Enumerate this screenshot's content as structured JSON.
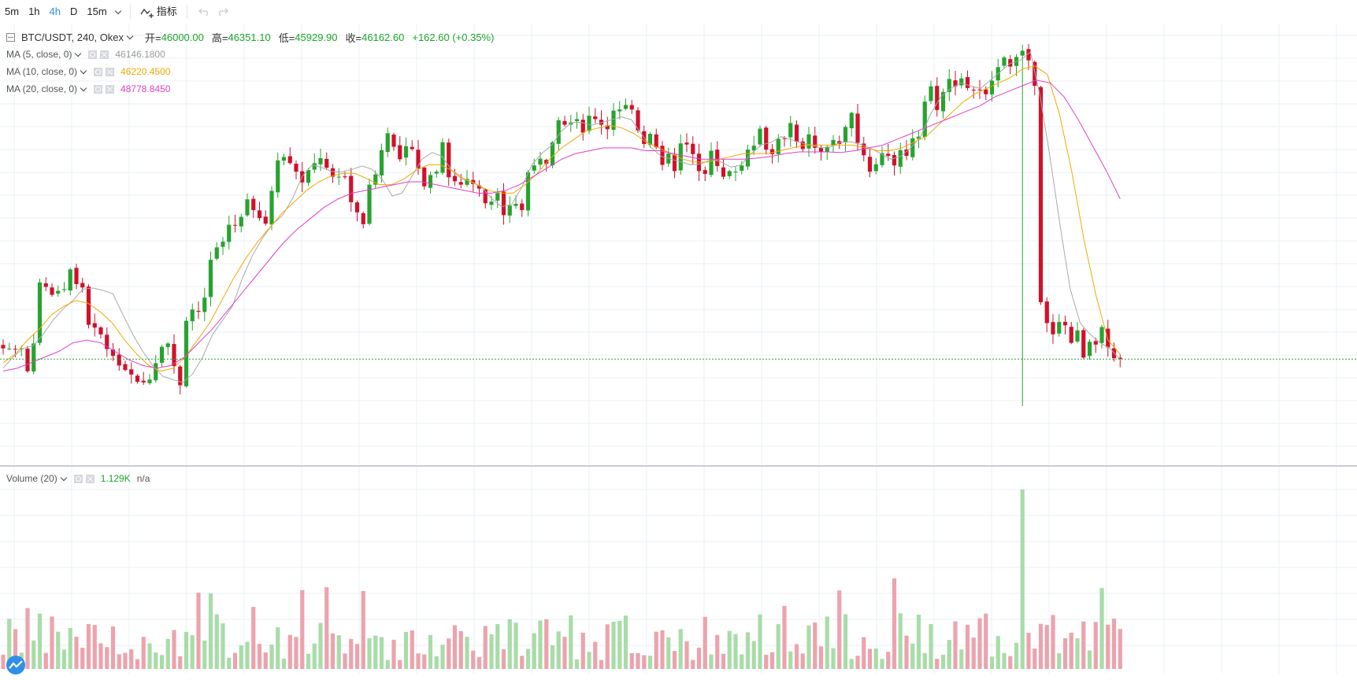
{
  "toolbar": {
    "intervals": [
      "5m",
      "1h",
      "4h",
      "D",
      "15m"
    ],
    "active_interval": "4h",
    "indicators_label": "指标"
  },
  "main_legend": {
    "symbol": "BTC/USDT, 240, Okex",
    "open_label": "开=",
    "open": "46000.00",
    "high_label": "高=",
    "high": "46351.10",
    "low_label": "低=",
    "low": "45929.90",
    "close_label": "收=",
    "close": "46162.60",
    "change": "+162.60 (+0.35%)"
  },
  "ma_legends": [
    {
      "label": "MA (5, close, 0)",
      "value": "46146.1800",
      "color": "#a9a9a9"
    },
    {
      "label": "MA (10, close, 0)",
      "value": "46220.4500",
      "color": "#f2a900"
    },
    {
      "label": "MA (20, close, 0)",
      "value": "48778.8450",
      "color": "#e040c8"
    }
  ],
  "volume_legend": {
    "label": "Volume (20)",
    "value": "1.129K",
    "extra": "n/a"
  },
  "colors": {
    "up": "#27a32f",
    "down": "#d0112b",
    "vol_up": "#a8dca8",
    "vol_down": "#eca3ad",
    "grid": "#e9f0f5",
    "price_line": "#27a32f"
  },
  "chart_data": {
    "type": "candlestick",
    "last_price": 46162.6,
    "closes": [
      46353,
      46350,
      46343,
      46348,
      45947,
      46440,
      47520,
      47440,
      47300,
      47370,
      47401,
      47750,
      47490,
      47430,
      46770,
      46720,
      46600,
      46340,
      46220,
      46050,
      45970,
      45890,
      45760,
      45750,
      45800,
      46090,
      46380,
      46440,
      46040,
      45700,
      46840,
      47040,
      47000,
      47250,
      47920,
      48140,
      48240,
      48540,
      48530,
      48680,
      48990,
      48800,
      48660,
      48560,
      49140,
      49680,
      49740,
      49630,
      49480,
      49290,
      49510,
      49630,
      49720,
      49550,
      49390,
      49390,
      49380,
      48940,
      48760,
      48550,
      49250,
      49430,
      49860,
      50160,
      49920,
      49700,
      49930,
      49880,
      49540,
      49220,
      49420,
      49480,
      50000,
      49380,
      49310,
      49250,
      49350,
      49260,
      49180,
      48920,
      48950,
      49100,
      48710,
      48880,
      48910,
      48800,
      49470,
      49590,
      49710,
      49620,
      50000,
      50390,
      50310,
      50350,
      50410,
      50170,
      50470,
      50410,
      50310,
      50230,
      50560,
      50580,
      50660,
      50580,
      50210,
      49970,
      50150,
      49910,
      49600,
      49800,
      49490,
      49980,
      49960,
      49790,
      49490,
      49440,
      49850,
      49580,
      49390,
      49490,
      49480,
      49590,
      49870,
      49940,
      50240,
      49870,
      49790,
      50060,
      50060,
      50340,
      50010,
      49880,
      50140,
      49900,
      49830,
      49920,
      50040,
      49970,
      50270,
      50520,
      49990,
      49770,
      49480,
      49610,
      49810,
      49760,
      49590,
      49860,
      49760,
      50070,
      50100,
      50720,
      50990,
      50570,
      50890,
      51120,
      50990,
      51130,
      50960,
      50930,
      50920,
      50850,
      51090,
      51330,
      51500,
      51340,
      51510,
      51620,
      51450,
      51000,
      47170,
      46800,
      46600,
      46820,
      46760,
      46450,
      46670,
      46190,
      46470,
      46420,
      46730,
      46370,
      46180,
      46162.6
    ],
    "ma": {
      "ma5": [
        46000,
        46200,
        46350,
        46400,
        46600,
        46850,
        47050,
        47200,
        47400,
        47420,
        47380,
        47320,
        46950,
        46600,
        46300,
        46050,
        45860,
        45800,
        45750,
        45900,
        46200,
        46600,
        46850,
        47100,
        47600,
        48000,
        48300,
        48550,
        48700,
        49000,
        49400,
        49600,
        49550,
        49480,
        49480,
        49520,
        49580,
        49520,
        49350,
        49050,
        49100,
        49400,
        49700,
        49820,
        49750,
        49500,
        49350,
        49300,
        49200,
        49000,
        48860,
        48900,
        49200,
        49600,
        49800,
        49950,
        50200,
        50350,
        50350,
        50300,
        50350,
        50400,
        50450,
        50400,
        50150,
        49900,
        49750,
        49700,
        49650,
        49600,
        49620,
        49700,
        49650,
        49560,
        49600,
        49800,
        49950,
        50000,
        50100,
        50050,
        49990,
        49950,
        49900,
        49920,
        50000,
        50010,
        49960,
        49890,
        49800,
        49700,
        49750,
        49900,
        50100,
        50500,
        50800,
        50950,
        51050,
        51000,
        50950,
        51100,
        51250,
        51400,
        51450,
        51600,
        50800,
        49700,
        48500,
        47400,
        46800,
        46600,
        46450,
        46350,
        46150
      ],
      "ma10": [
        46100,
        46250,
        46500,
        46700,
        46950,
        47100,
        47200,
        47150,
        47000,
        46800,
        46500,
        46250,
        46050,
        45950,
        46000,
        46200,
        46500,
        46800,
        47200,
        47600,
        47950,
        48250,
        48500,
        48750,
        48950,
        49150,
        49300,
        49400,
        49450,
        49450,
        49350,
        49250,
        49250,
        49350,
        49500,
        49600,
        49600,
        49500,
        49350,
        49250,
        49150,
        49100,
        49100,
        49250,
        49450,
        49700,
        49900,
        50050,
        50200,
        50250,
        50300,
        50250,
        50150,
        50000,
        49900,
        49800,
        49700,
        49650,
        49650,
        49700,
        49750,
        49800,
        49800,
        49800,
        49850,
        49900,
        49950,
        49950,
        49950,
        49950,
        49950,
        49900,
        49850,
        49850,
        49900,
        50000,
        50100,
        50300,
        50500,
        50700,
        50850,
        50950,
        51050,
        51150,
        51300,
        51350,
        51200,
        50500,
        49500,
        48300,
        47300,
        46500,
        46250
      ],
      "ma20": [
        45950,
        46000,
        46100,
        46200,
        46300,
        46450,
        46500,
        46450,
        46300,
        46150,
        46050,
        46000,
        46050,
        46200,
        46450,
        46700,
        47000,
        47300,
        47600,
        47900,
        48200,
        48450,
        48650,
        48850,
        49000,
        49100,
        49150,
        49200,
        49250,
        49300,
        49300,
        49250,
        49200,
        49150,
        49100,
        49100,
        49150,
        49250,
        49400,
        49550,
        49700,
        49800,
        49850,
        49900,
        49900,
        49900,
        49850,
        49850,
        49800,
        49750,
        49700,
        49700,
        49700,
        49700,
        49720,
        49750,
        49800,
        49830,
        49830,
        49830,
        49820,
        49850,
        49900,
        49950,
        50050,
        50150,
        50250,
        50350,
        50450,
        50550,
        50650,
        50800,
        50900,
        51000,
        51100,
        51050,
        50800,
        50400,
        49950,
        49500,
        49000
      ]
    },
    "volume_max_k": 6.2,
    "volume_last": "1.129K"
  }
}
